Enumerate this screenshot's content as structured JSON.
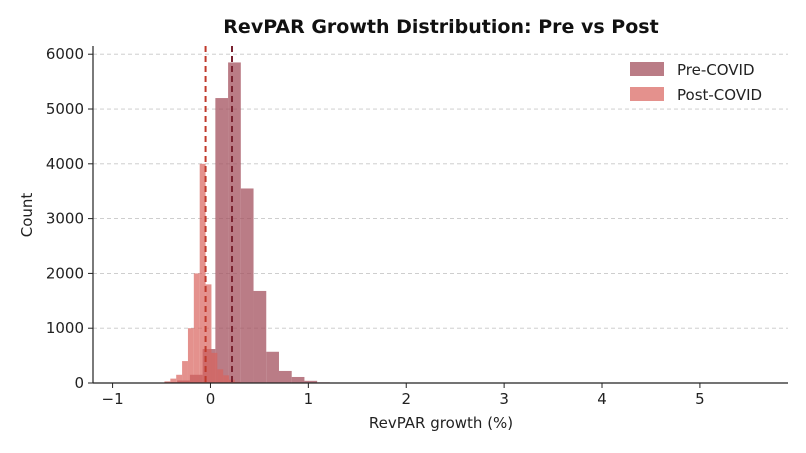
{
  "chart_data": {
    "type": "histogram",
    "title": "RevPAR Growth Distribution: Pre vs Post",
    "xlabel": "RevPAR growth (%)",
    "ylabel": "Count",
    "xlim": [
      -1.2,
      5.9
    ],
    "ylim": [
      0,
      6150
    ],
    "x_ticks": [
      {
        "value": -1,
        "label": "−1"
      },
      {
        "value": 0,
        "label": "0"
      },
      {
        "value": 1,
        "label": "1"
      },
      {
        "value": 2,
        "label": "2"
      },
      {
        "value": 3,
        "label": "3"
      },
      {
        "value": 4,
        "label": "4"
      },
      {
        "value": 5,
        "label": "5"
      }
    ],
    "y_ticks": [
      {
        "value": 0,
        "label": "0"
      },
      {
        "value": 1000,
        "label": "1000"
      },
      {
        "value": 2000,
        "label": "2000"
      },
      {
        "value": 3000,
        "label": "3000"
      },
      {
        "value": 4000,
        "label": "4000"
      },
      {
        "value": 5000,
        "label": "5000"
      },
      {
        "value": 6000,
        "label": "6000"
      }
    ],
    "grid": "y-dashed",
    "legend_position": "top-right",
    "series": [
      {
        "name": "Pre-COVID",
        "color": "#a3505e",
        "opacity": 0.75,
        "bin_edges": [
          -0.47,
          -0.34,
          -0.21,
          -0.08,
          0.05,
          0.18,
          0.31,
          0.44,
          0.57,
          0.7,
          0.83,
          0.96,
          1.09,
          1.22
        ],
        "counts": [
          15,
          45,
          150,
          620,
          5200,
          5850,
          3550,
          1680,
          570,
          220,
          110,
          40,
          12
        ],
        "mean": 0.22
      },
      {
        "name": "Post-COVID",
        "color": "#d9625c",
        "opacity": 0.7,
        "bin_edges": [
          -0.47,
          -0.41,
          -0.35,
          -0.29,
          -0.23,
          -0.17,
          -0.11,
          -0.05,
          0.01,
          0.07,
          0.13,
          0.19,
          0.25,
          0.31
        ],
        "counts": [
          30,
          80,
          150,
          400,
          1000,
          2000,
          4000,
          1800,
          550,
          250,
          140,
          60,
          20
        ],
        "mean": -0.05
      }
    ]
  }
}
